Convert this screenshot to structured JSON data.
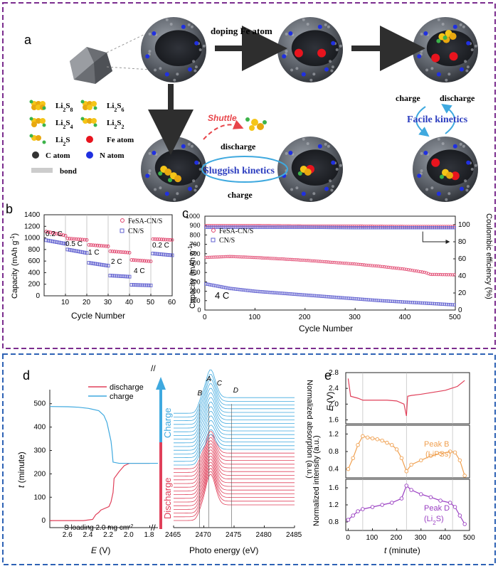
{
  "colors": {
    "purple_border": "#7B2D8E",
    "blue_border": "#2E62B5",
    "fesa": "#E0406A",
    "cn": "#6060D0",
    "discharge": "#E0405A",
    "charge": "#3FA9DF",
    "purple_curve": "#9A3FC2",
    "orange_curve": "#F0A050",
    "kinetics_blue": "#2C3DBF",
    "shuttle": "#E8454A"
  },
  "panel_a": {
    "label": "a",
    "arrow_label": "doping Fe atom",
    "shuttle": "Shuttle",
    "sluggish": "Sluggish kinetics",
    "facile": "Facile kinetics",
    "discharge_left": "discharge",
    "charge_left": "charge",
    "charge_right": "charge",
    "discharge_right": "discharge",
    "legend": [
      {
        "id": "li2s8",
        "label": "Li",
        "sub": "2",
        "rest": "S",
        "sub2": "8"
      },
      {
        "id": "li2s6",
        "label": "Li",
        "sub": "2",
        "rest": "S",
        "sub2": "6"
      },
      {
        "id": "li2s4",
        "label": "Li",
        "sub": "2",
        "rest": "S",
        "sub2": "4"
      },
      {
        "id": "li2s2",
        "label": "Li",
        "sub": "2",
        "rest": "S",
        "sub2": "2"
      },
      {
        "id": "li2s",
        "label": "Li",
        "sub": "2",
        "rest": "S",
        "sub2": ""
      },
      {
        "id": "fe",
        "label": "Fe atom"
      },
      {
        "id": "c",
        "label": "C atom"
      },
      {
        "id": "n",
        "label": "N atom"
      },
      {
        "id": "bond",
        "label": "bond"
      }
    ]
  },
  "panel_b": {
    "label": "b",
    "xlabel": "Cycle Number",
    "ylabel": "Capacity (mAh g",
    "ylabel_sup": "-1",
    "ylabel_end": ")",
    "xlim": [
      0,
      60
    ],
    "ylim": [
      0,
      1400
    ],
    "xticks": [
      "10",
      "20",
      "30",
      "40",
      "50",
      "60"
    ],
    "yticks": [
      "0",
      "200",
      "400",
      "600",
      "800",
      "1000",
      "1200",
      "1400"
    ],
    "rate_labels": [
      "0.2 C",
      "0.5 C",
      "1 C",
      "2 C",
      "4 C",
      "0.2 C"
    ],
    "legend": [
      "FeSA-CN/S",
      "CN/S"
    ]
  },
  "panel_c": {
    "label": "c",
    "xlabel": "Cycle Number",
    "ylabel": "Capacity (mAh g",
    "ylabel_sup": "-1",
    "ylabel_end": ")",
    "ylabel_right": "Coulombic efficiency (%)",
    "xlim": [
      0,
      500
    ],
    "ylim": [
      0,
      1000
    ],
    "ylim_right": [
      0,
      110
    ],
    "xticks": [
      "0",
      "100",
      "200",
      "300",
      "400",
      "500"
    ],
    "yticks": [
      "0",
      "100",
      "200",
      "300",
      "400",
      "500",
      "600",
      "700",
      "800",
      "900",
      "1000"
    ],
    "yticks_right": [
      "0",
      "20",
      "40",
      "60",
      "80",
      "100"
    ],
    "rate": "4 C",
    "legend": [
      "FeSA-CN/S",
      "CN/S"
    ]
  },
  "panel_d": {
    "label": "d",
    "xlabel_left": "E",
    "xlabel_left_unit": " (V)",
    "ylabel_left": "t",
    "ylabel_left_unit": " (minute)",
    "xticks_left": [
      "2.6",
      "2.4",
      "2.2",
      "2.0",
      "1.8"
    ],
    "yticks_left": [
      "0",
      "100",
      "200",
      "300",
      "400",
      "500"
    ],
    "legend": [
      "discharge",
      "charge"
    ],
    "loading": "S loading 2.0 mg cm",
    "loading_sup": "-2",
    "arrow_charge": "Charge",
    "arrow_discharge": "Discharge",
    "peaks": [
      "A",
      "B",
      "C",
      "D"
    ],
    "xlabel_right": "Photo energy (eV)",
    "xticks_right": [
      "2465",
      "2470",
      "2475",
      "2480",
      "2485"
    ],
    "ylabel_right": "Normalized absorption (a.u.)"
  },
  "panel_e": {
    "label": "e",
    "ylabel_top": "E",
    "ylabel_top_unit": " (V)",
    "yticks_top": [
      "1.6",
      "2.0",
      "2.4",
      "2.8"
    ],
    "ylabel_mid": "Normalized intensity (a.u.)",
    "yticks_mid": [
      "0.4",
      "0.8",
      "1.2"
    ],
    "peak_b": "Peak B",
    "peak_b_sub": "(LiPSs)",
    "yticks_bot": [
      "0.8",
      "1.2",
      "1.6"
    ],
    "peak_d": "Peak D",
    "peak_d_sub_a": "(Li",
    "peak_d_sub_b": "2",
    "peak_d_sub_c": "S)",
    "xlabel": "t",
    "xlabel_unit": " (minute)",
    "xticks": [
      "0",
      "100",
      "200",
      "300",
      "400",
      "500"
    ]
  },
  "chart_data": [
    {
      "type": "scatter",
      "panel": "b",
      "xlabel": "Cycle Number",
      "ylabel": "Capacity (mAh g-1)",
      "xlim": [
        0,
        60
      ],
      "ylim": [
        0,
        1400
      ],
      "series": [
        {
          "name": "FeSA-CN/S",
          "segments": [
            {
              "x0": 1,
              "x1": 10,
              "y0": 1110,
              "y1": 1040
            },
            {
              "x0": 11,
              "x1": 20,
              "y0": 990,
              "y1": 965
            },
            {
              "x0": 21,
              "x1": 30,
              "y0": 880,
              "y1": 855
            },
            {
              "x0": 31,
              "x1": 40,
              "y0": 770,
              "y1": 745
            },
            {
              "x0": 41,
              "x1": 50,
              "y0": 620,
              "y1": 595
            },
            {
              "x0": 51,
              "x1": 60,
              "y0": 980,
              "y1": 965
            }
          ]
        },
        {
          "name": "CN/S",
          "segments": [
            {
              "x0": 1,
              "x1": 10,
              "y0": 960,
              "y1": 900
            },
            {
              "x0": 11,
              "x1": 20,
              "y0": 800,
              "y1": 740
            },
            {
              "x0": 21,
              "x1": 30,
              "y0": 570,
              "y1": 520
            },
            {
              "x0": 31,
              "x1": 40,
              "y0": 350,
              "y1": 330
            },
            {
              "x0": 41,
              "x1": 50,
              "y0": 190,
              "y1": 180
            },
            {
              "x0": 51,
              "x1": 60,
              "y0": 730,
              "y1": 700
            }
          ]
        }
      ]
    },
    {
      "type": "scatter",
      "panel": "c",
      "xlabel": "Cycle Number",
      "ylabel": "Capacity (mAh g-1)",
      "xlim": [
        0,
        500
      ],
      "ylim": [
        0,
        1000
      ],
      "series": [
        {
          "name": "FeSA-CN/S capacity",
          "x": [
            0,
            50,
            100,
            150,
            200,
            250,
            300,
            350,
            400,
            440,
            450,
            500
          ],
          "y": [
            560,
            570,
            560,
            545,
            530,
            510,
            490,
            465,
            435,
            400,
            380,
            375
          ]
        },
        {
          "name": "CN/S capacity",
          "x": [
            0,
            50,
            100,
            150,
            200,
            250,
            300,
            350,
            400,
            450,
            500
          ],
          "y": [
            280,
            230,
            200,
            180,
            160,
            140,
            120,
            100,
            85,
            70,
            55
          ]
        },
        {
          "name": "FeSA-CN/S Coulombic efficiency",
          "x": [
            0,
            100,
            200,
            300,
            400,
            500
          ],
          "y": [
            99,
            99,
            98.5,
            98.5,
            98,
            98
          ]
        },
        {
          "name": "CN/S Coulombic efficiency",
          "x": [
            0,
            100,
            200,
            300,
            400,
            500
          ],
          "y": [
            97,
            97,
            97,
            96.5,
            96.5,
            96.5
          ]
        }
      ]
    },
    {
      "type": "line",
      "panel": "d-left",
      "xlabel": "E (V)",
      "ylabel": "t (minute)",
      "series": [
        {
          "name": "discharge",
          "E": [
            2.78,
            2.45,
            2.36,
            2.33,
            2.3,
            2.28,
            2.2,
            2.18,
            2.16,
            2.15,
            2.1,
            2.05,
            2.0,
            1.8
          ],
          "t": [
            0,
            0,
            5,
            25,
            35,
            45,
            60,
            80,
            120,
            180,
            210,
            235,
            245,
            245
          ]
        },
        {
          "name": "charge",
          "E": [
            1.72,
            2.1,
            2.16,
            2.17,
            2.18,
            2.2,
            2.22,
            2.25,
            2.3,
            2.4,
            2.5,
            2.6,
            2.78
          ],
          "t": [
            245,
            245,
            250,
            300,
            340,
            380,
            420,
            450,
            470,
            480,
            485,
            487,
            488
          ]
        }
      ]
    },
    {
      "type": "line",
      "panel": "e",
      "xlabel": "t (minute)",
      "xlim": [
        0,
        500
      ],
      "series": [
        {
          "name": "E (V)",
          "x": [
            0,
            10,
            40,
            60,
            100,
            160,
            200,
            230,
            240,
            245,
            260,
            300,
            350,
            400,
            450,
            480
          ],
          "y": [
            2.65,
            2.2,
            2.15,
            2.1,
            2.1,
            2.1,
            2.08,
            2.0,
            1.7,
            2.2,
            2.22,
            2.25,
            2.3,
            2.35,
            2.45,
            2.6
          ]
        },
        {
          "name": "Peak B",
          "x": [
            0,
            20,
            40,
            60,
            80,
            100,
            120,
            140,
            160,
            180,
            200,
            220,
            240,
            260,
            300,
            340,
            380,
            420,
            440,
            460,
            480
          ],
          "y": [
            0.4,
            0.65,
            0.95,
            1.15,
            1.12,
            1.1,
            1.08,
            1.05,
            1.0,
            0.95,
            0.85,
            0.65,
            0.35,
            0.5,
            0.6,
            0.7,
            0.75,
            0.8,
            0.78,
            0.6,
            0.25
          ]
        },
        {
          "name": "Peak D",
          "x": [
            0,
            20,
            40,
            60,
            100,
            140,
            180,
            220,
            240,
            260,
            300,
            340,
            380,
            420,
            440,
            460,
            480
          ],
          "y": [
            0.85,
            0.95,
            1.05,
            1.1,
            1.15,
            1.2,
            1.25,
            1.35,
            1.65,
            1.55,
            1.45,
            1.38,
            1.3,
            1.25,
            1.15,
            0.95,
            0.75
          ]
        }
      ]
    }
  ]
}
